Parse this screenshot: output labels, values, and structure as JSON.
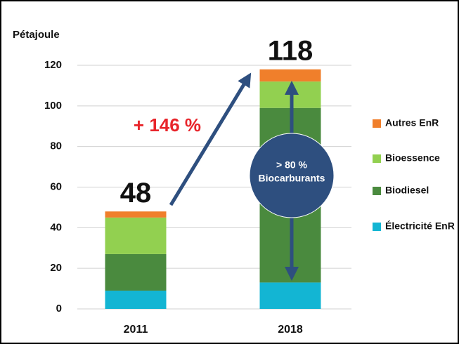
{
  "chart_data": {
    "type": "stacked_bar",
    "y_label": "Pétajoule",
    "categories": [
      "2011",
      "2018"
    ],
    "series": [
      {
        "name": "Électricité EnR",
        "color": "#13b5d3",
        "values": [
          9,
          13
        ]
      },
      {
        "name": "Biodiesel",
        "color": "#4a8a3e",
        "values": [
          18,
          86
        ]
      },
      {
        "name": "Bioessence",
        "color": "#92d050",
        "values": [
          18,
          13
        ]
      },
      {
        "name": "Autres EnR",
        "color": "#f07f2b",
        "values": [
          3,
          6
        ]
      }
    ],
    "totals": [
      48,
      118
    ],
    "annotations": [
      "+ 146 %",
      "> 80 %",
      "Biocarburants"
    ],
    "ylim": [
      0,
      120
    ],
    "yticks": [
      0,
      20,
      40,
      60,
      80,
      100,
      120
    ],
    "grid": true,
    "legend": "right"
  }
}
